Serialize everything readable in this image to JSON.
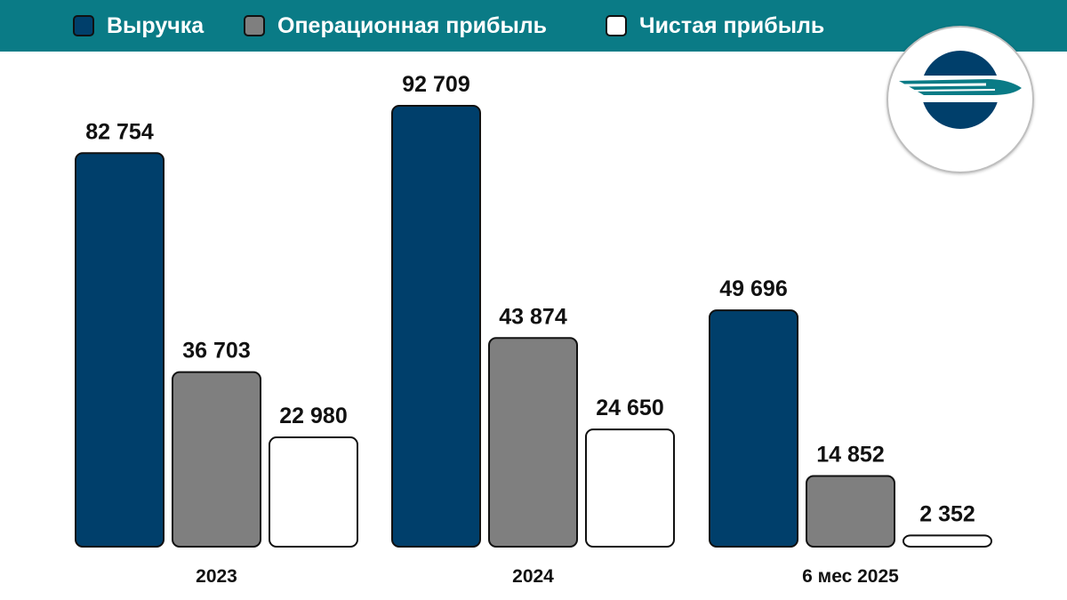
{
  "legend": [
    {
      "label": "Выручка",
      "color": "#003f6b"
    },
    {
      "label": "Операционная прибыль",
      "color": "#7f7f7f"
    },
    {
      "label": "Чистая прибыль",
      "color": "#ffffff"
    }
  ],
  "chart_data": {
    "type": "bar",
    "categories": [
      "2023",
      "2024",
      "6 мес 2025"
    ],
    "series": [
      {
        "name": "Выручка",
        "color": "#003f6b",
        "values": [
          82754,
          92709,
          49696
        ],
        "labels": [
          "82 754",
          "92 709",
          "49 696"
        ]
      },
      {
        "name": "Операционная прибыль",
        "color": "#7f7f7f",
        "values": [
          36703,
          43874,
          14852
        ],
        "labels": [
          "36 703",
          "43 874",
          "14 852"
        ]
      },
      {
        "name": "Чистая прибыль",
        "color": "#ffffff",
        "values": [
          22980,
          24650,
          2352
        ],
        "labels": [
          "22 980",
          "24 650",
          "2 352"
        ]
      }
    ],
    "ylim": [
      0,
      92709
    ],
    "grid": false,
    "legend_position": "top"
  },
  "logo": {
    "name": "company-logo"
  }
}
